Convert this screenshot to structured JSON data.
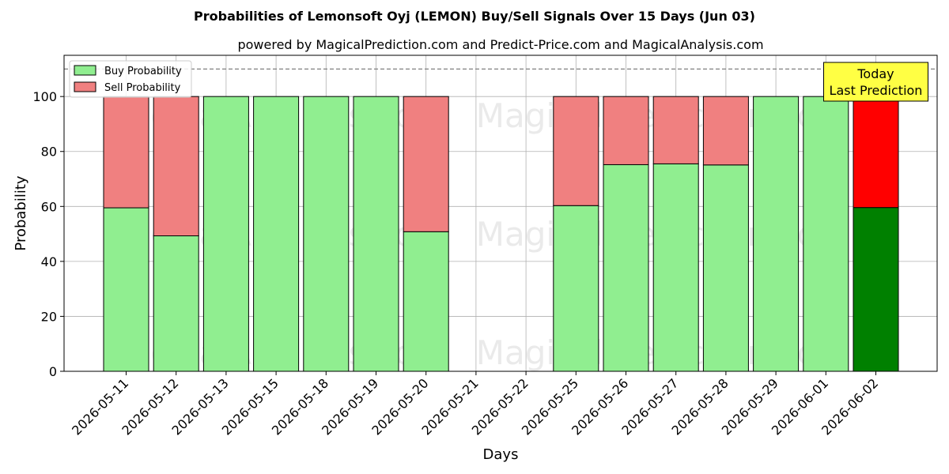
{
  "chart_data": {
    "type": "bar",
    "title": "Probabilities of Lemonsoft Oyj (LEMON) Buy/Sell Signals Over 15 Days (Jun 03)",
    "subtitle": "powered by MagicalPrediction.com and Predict-Price.com and MagicalAnalysis.com",
    "xlabel": "Days",
    "ylabel": "Probability",
    "ylim": [
      0,
      115
    ],
    "yticks": [
      0,
      20,
      40,
      60,
      80,
      100
    ],
    "reference_line": 110,
    "grid": true,
    "legend_position": "top-left",
    "categories": [
      "2026-05-11",
      "2026-05-12",
      "2026-05-13",
      "2026-05-15",
      "2026-05-18",
      "2026-05-19",
      "2026-05-20",
      "2026-05-21",
      "2026-05-22",
      "2026-05-25",
      "2026-05-26",
      "2026-05-27",
      "2026-05-28",
      "2026-05-29",
      "2026-06-01",
      "2026-06-02"
    ],
    "series": [
      {
        "name": "Buy Probability",
        "color": "#90ee90",
        "values": [
          59.5,
          49.3,
          100,
          100,
          100,
          100,
          50.8,
          null,
          null,
          60.3,
          75.2,
          75.5,
          75.1,
          100,
          100,
          59.6
        ]
      },
      {
        "name": "Sell Probability",
        "color": "#f08080",
        "values": [
          40.5,
          50.7,
          0,
          0,
          0,
          0,
          49.2,
          null,
          null,
          39.7,
          24.8,
          24.5,
          24.9,
          0,
          0,
          40.4
        ]
      }
    ],
    "highlight": {
      "category": "2026-06-02",
      "buy_color": "#008000",
      "sell_color": "#ff0000"
    },
    "annotation": {
      "lines": [
        "Today",
        "Last Prediction"
      ],
      "category": "2026-06-02",
      "background": "#ffff44"
    },
    "watermarks": [
      "MagicalAnalysis.com",
      "MagicalPrediction.com"
    ]
  }
}
